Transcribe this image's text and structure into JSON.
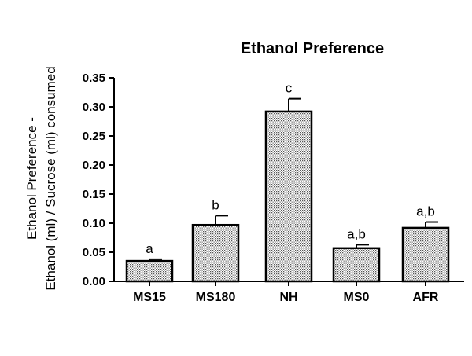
{
  "chart_data": {
    "type": "bar",
    "title": "Ethanol Preference",
    "ylabel_line1": "Ethanol Preference -",
    "ylabel_line2": "Ethanol (ml) / Sucrose (ml) consumed",
    "xlabel": "",
    "categories": [
      "MS15",
      "MS180",
      "NH",
      "MS0",
      "AFR"
    ],
    "values": [
      0.035,
      0.097,
      0.292,
      0.057,
      0.092
    ],
    "errors": [
      0.003,
      0.016,
      0.022,
      0.006,
      0.01
    ],
    "annotations": [
      "a",
      "b",
      "c",
      "a,b",
      "a,b"
    ],
    "ylim": [
      0,
      0.35
    ],
    "yticks": [
      "0.00",
      "0.05",
      "0.10",
      "0.15",
      "0.20",
      "0.25",
      "0.30",
      "0.35"
    ],
    "bar_fill": "#d9d9d9",
    "grid": false,
    "legend": "none"
  }
}
